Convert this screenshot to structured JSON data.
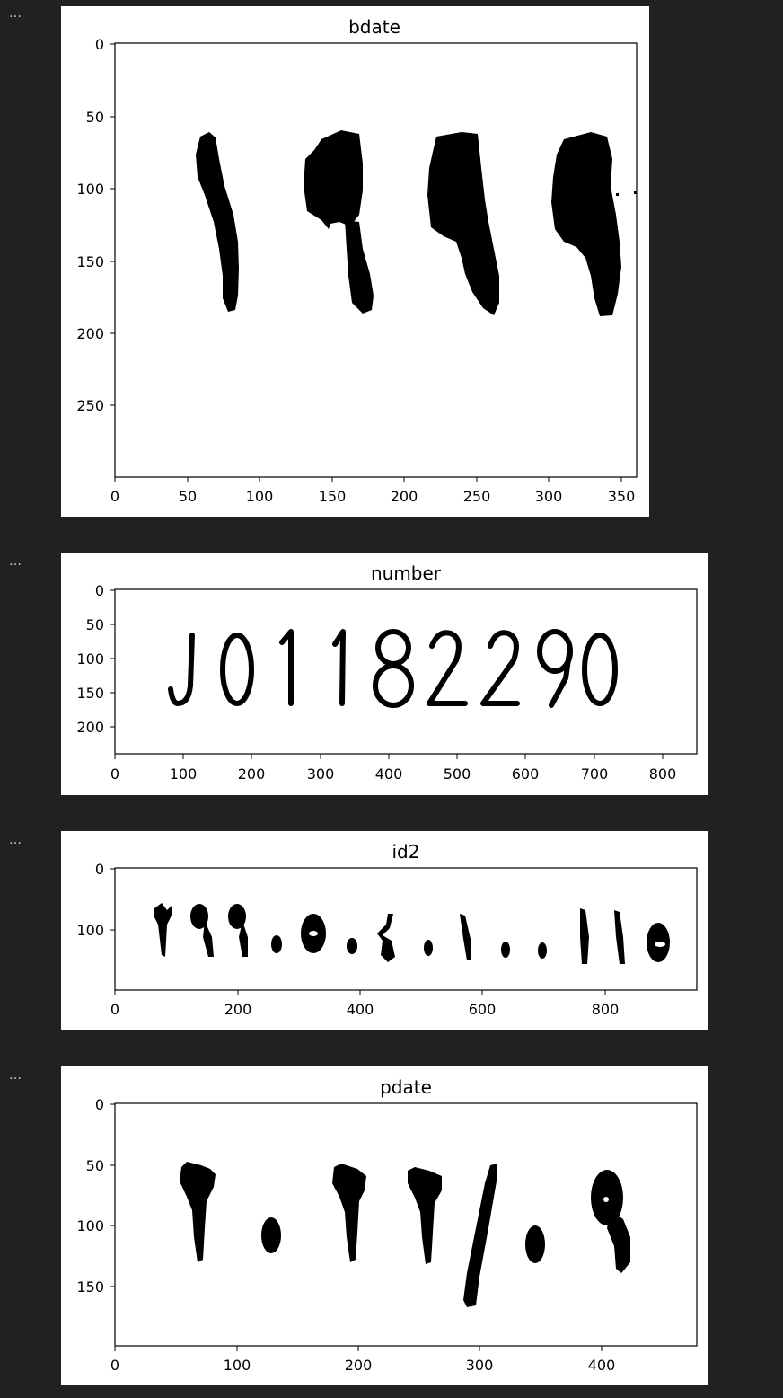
{
  "cells": [
    {
      "collapse_label": "…"
    },
    {
      "collapse_label": "…"
    },
    {
      "collapse_label": "…"
    },
    {
      "collapse_label": "…"
    }
  ],
  "plots": {
    "bdate": {
      "title": "bdate",
      "x_ticks": [
        "0",
        "50",
        "100",
        "150",
        "200",
        "250",
        "300",
        "350"
      ],
      "y_ticks": [
        "0",
        "50",
        "100",
        "150",
        "200",
        "250"
      ]
    },
    "number": {
      "title": "number",
      "x_ticks": [
        "0",
        "100",
        "200",
        "300",
        "400",
        "500",
        "600",
        "700",
        "800"
      ],
      "y_ticks": [
        "0",
        "50",
        "100",
        "150",
        "200"
      ]
    },
    "id2": {
      "title": "id2",
      "x_ticks": [
        "0",
        "200",
        "400",
        "600",
        "800"
      ],
      "y_ticks": [
        "0",
        "100"
      ]
    },
    "pdate": {
      "title": "pdate",
      "x_ticks": [
        "0",
        "100",
        "200",
        "300",
        "400"
      ],
      "y_ticks": [
        "0",
        "50",
        "100",
        "150"
      ]
    }
  },
  "chart_data": [
    {
      "type": "heatmap",
      "title": "bdate",
      "xlim": [
        0,
        360
      ],
      "ylim": [
        300,
        0
      ],
      "colormap": "binary",
      "grid": false
    },
    {
      "type": "heatmap",
      "title": "number",
      "xlim": [
        0,
        850
      ],
      "ylim": [
        240,
        0
      ],
      "colormap": "binary",
      "grid": false
    },
    {
      "type": "heatmap",
      "title": "id2",
      "xlim": [
        0,
        950
      ],
      "ylim": [
        200,
        0
      ],
      "colormap": "binary",
      "grid": false
    },
    {
      "type": "heatmap",
      "title": "pdate",
      "xlim": [
        0,
        480
      ],
      "ylim": [
        200,
        0
      ],
      "colormap": "binary",
      "grid": false
    }
  ]
}
